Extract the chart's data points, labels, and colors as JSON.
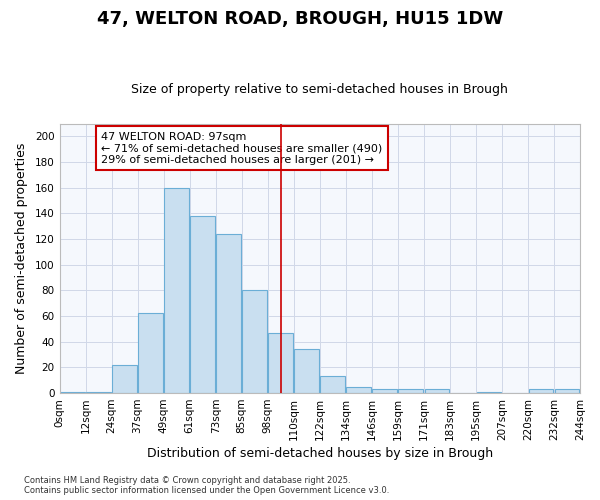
{
  "title": "47, WELTON ROAD, BROUGH, HU15 1DW",
  "subtitle": "Size of property relative to semi-detached houses in Brough",
  "xlabel": "Distribution of semi-detached houses by size in Brough",
  "ylabel": "Number of semi-detached properties",
  "footer_line1": "Contains HM Land Registry data © Crown copyright and database right 2025.",
  "footer_line2": "Contains public sector information licensed under the Open Government Licence v3.0.",
  "annotation_title": "47 WELTON ROAD: 97sqm",
  "annotation_line1": "← 71% of semi-detached houses are smaller (490)",
  "annotation_line2": "29% of semi-detached houses are larger (201) →",
  "bin_labels": [
    "0sqm",
    "12sqm",
    "24sqm",
    "37sqm",
    "49sqm",
    "61sqm",
    "73sqm",
    "85sqm",
    "98sqm",
    "110sqm",
    "122sqm",
    "134sqm",
    "146sqm",
    "159sqm",
    "171sqm",
    "183sqm",
    "195sqm",
    "207sqm",
    "220sqm",
    "232sqm",
    "244sqm"
  ],
  "counts": [
    1,
    1,
    22,
    62,
    160,
    138,
    124,
    80,
    47,
    34,
    13,
    5,
    3,
    3,
    3,
    0,
    1,
    0,
    3,
    3
  ],
  "vline_bin": 8,
  "bar_color": "#c9dff0",
  "bar_edge_color": "#6baed6",
  "vline_color": "#cc0000",
  "annotation_box_color": "#ffffff",
  "annotation_box_edge_color": "#cc0000",
  "background_color": "#ffffff",
  "plot_bg_color": "#f5f8fd",
  "grid_color": "#d0d8e8",
  "ylim": [
    0,
    210
  ],
  "yticks": [
    0,
    20,
    40,
    60,
    80,
    100,
    120,
    140,
    160,
    180,
    200
  ],
  "title_fontsize": 13,
  "subtitle_fontsize": 9,
  "label_fontsize": 9,
  "tick_fontsize": 7.5
}
